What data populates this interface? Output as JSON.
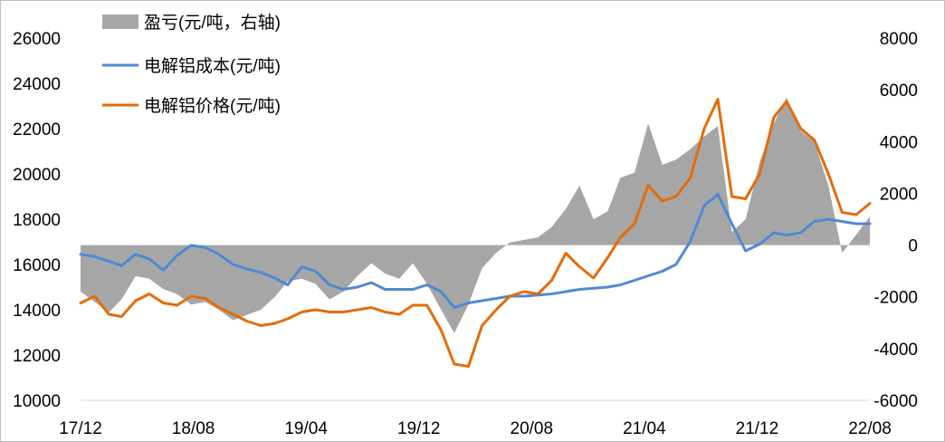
{
  "chart_data": {
    "type": "line",
    "title": "",
    "x_ticks": [
      "17/12",
      "18/08",
      "19/04",
      "19/12",
      "20/08",
      "21/04",
      "21/12",
      "22/08"
    ],
    "x_range": [
      "2017-12",
      "2022-08"
    ],
    "y_left": {
      "label": "",
      "ticks": [
        "10000",
        "12000",
        "14000",
        "16000",
        "18000",
        "20000",
        "22000",
        "24000",
        "26000"
      ],
      "range": [
        10000,
        26000
      ]
    },
    "y_right": {
      "label": "",
      "ticks": [
        "-6000",
        "-4000",
        "-2000",
        "0",
        "2000",
        "4000",
        "6000",
        "8000"
      ],
      "range": [
        -6000,
        8000
      ]
    },
    "legend_position": "top-left",
    "grid": false,
    "x_months_from_start_note": "x values are dates as YYYY-MM-DD",
    "series": [
      {
        "name": "盈亏(元/吨，右轴)",
        "kind": "area",
        "axis": "right",
        "color": "#a6a6a6",
        "points": [
          [
            "2017-12-01",
            -1800
          ],
          [
            "2018-01-01",
            -2200
          ],
          [
            "2018-02-01",
            -2600
          ],
          [
            "2018-03-01",
            -2100
          ],
          [
            "2018-04-01",
            -1200
          ],
          [
            "2018-05-01",
            -1300
          ],
          [
            "2018-06-01",
            -1700
          ],
          [
            "2018-07-01",
            -1900
          ],
          [
            "2018-08-01",
            -2300
          ],
          [
            "2018-09-01",
            -2200
          ],
          [
            "2018-10-01",
            -2500
          ],
          [
            "2018-11-01",
            -2900
          ],
          [
            "2018-12-01",
            -2700
          ],
          [
            "2019-01-01",
            -2500
          ],
          [
            "2019-02-01",
            -2000
          ],
          [
            "2019-03-01",
            -1400
          ],
          [
            "2019-04-01",
            -1300
          ],
          [
            "2019-05-01",
            -1500
          ],
          [
            "2019-06-01",
            -2100
          ],
          [
            "2019-07-01",
            -1800
          ],
          [
            "2019-08-01",
            -1200
          ],
          [
            "2019-09-01",
            -700
          ],
          [
            "2019-10-01",
            -1100
          ],
          [
            "2019-11-01",
            -1300
          ],
          [
            "2019-12-01",
            -700
          ],
          [
            "2020-01-01",
            -1500
          ],
          [
            "2020-02-01",
            -2500
          ],
          [
            "2020-03-01",
            -3400
          ],
          [
            "2020-04-01",
            -2300
          ],
          [
            "2020-05-01",
            -900
          ],
          [
            "2020-06-01",
            -300
          ],
          [
            "2020-07-01",
            100
          ],
          [
            "2020-08-01",
            200
          ],
          [
            "2020-09-01",
            300
          ],
          [
            "2020-10-01",
            700
          ],
          [
            "2020-11-01",
            1400
          ],
          [
            "2020-12-01",
            2300
          ],
          [
            "2021-01-01",
            1000
          ],
          [
            "2021-02-01",
            1300
          ],
          [
            "2021-03-01",
            2600
          ],
          [
            "2021-04-01",
            2800
          ],
          [
            "2021-05-01",
            4700
          ],
          [
            "2021-06-01",
            3100
          ],
          [
            "2021-07-01",
            3300
          ],
          [
            "2021-08-01",
            3700
          ],
          [
            "2021-09-01",
            4200
          ],
          [
            "2021-10-01",
            4600
          ],
          [
            "2021-11-01",
            500
          ],
          [
            "2021-12-01",
            1000
          ],
          [
            "2022-01-01",
            3200
          ],
          [
            "2022-02-01",
            4700
          ],
          [
            "2022-03-01",
            5700
          ],
          [
            "2022-04-01",
            4400
          ],
          [
            "2022-05-01",
            4000
          ],
          [
            "2022-06-01",
            2300
          ],
          [
            "2022-07-01",
            -300
          ],
          [
            "2022-08-01",
            400
          ],
          [
            "2022-08-31",
            1100
          ]
        ]
      },
      {
        "name": "电解铝成本(元/吨)",
        "kind": "line",
        "axis": "left",
        "color": "#4f89d3",
        "points": [
          [
            "2017-12-01",
            16450
          ],
          [
            "2018-01-01",
            16350
          ],
          [
            "2018-02-01",
            16150
          ],
          [
            "2018-03-01",
            15950
          ],
          [
            "2018-04-01",
            16450
          ],
          [
            "2018-05-01",
            16250
          ],
          [
            "2018-06-01",
            15750
          ],
          [
            "2018-07-01",
            16400
          ],
          [
            "2018-08-01",
            16850
          ],
          [
            "2018-09-01",
            16750
          ],
          [
            "2018-10-01",
            16450
          ],
          [
            "2018-11-01",
            16000
          ],
          [
            "2018-12-01",
            15800
          ],
          [
            "2019-01-01",
            15650
          ],
          [
            "2019-02-01",
            15400
          ],
          [
            "2019-03-01",
            15100
          ],
          [
            "2019-04-01",
            15900
          ],
          [
            "2019-05-01",
            15700
          ],
          [
            "2019-06-01",
            15100
          ],
          [
            "2019-07-01",
            14900
          ],
          [
            "2019-08-01",
            15000
          ],
          [
            "2019-09-01",
            15200
          ],
          [
            "2019-10-01",
            14900
          ],
          [
            "2019-11-01",
            14900
          ],
          [
            "2019-12-01",
            14900
          ],
          [
            "2020-01-01",
            15100
          ],
          [
            "2020-02-01",
            14800
          ],
          [
            "2020-03-01",
            14100
          ],
          [
            "2020-04-01",
            14300
          ],
          [
            "2020-05-01",
            14400
          ],
          [
            "2020-06-01",
            14500
          ],
          [
            "2020-07-01",
            14600
          ],
          [
            "2020-08-01",
            14600
          ],
          [
            "2020-09-01",
            14650
          ],
          [
            "2020-10-01",
            14700
          ],
          [
            "2020-11-01",
            14800
          ],
          [
            "2020-12-01",
            14900
          ],
          [
            "2021-01-01",
            14950
          ],
          [
            "2021-02-01",
            15000
          ],
          [
            "2021-03-01",
            15100
          ],
          [
            "2021-04-01",
            15300
          ],
          [
            "2021-05-01",
            15500
          ],
          [
            "2021-06-01",
            15700
          ],
          [
            "2021-07-01",
            16000
          ],
          [
            "2021-08-01",
            17000
          ],
          [
            "2021-09-01",
            18600
          ],
          [
            "2021-10-01",
            19100
          ],
          [
            "2021-11-01",
            17800
          ],
          [
            "2021-12-01",
            16600
          ],
          [
            "2022-01-01",
            16900
          ],
          [
            "2022-02-01",
            17400
          ],
          [
            "2022-03-01",
            17300
          ],
          [
            "2022-04-01",
            17400
          ],
          [
            "2022-05-01",
            17900
          ],
          [
            "2022-06-01",
            18000
          ],
          [
            "2022-07-01",
            17900
          ],
          [
            "2022-08-01",
            17800
          ],
          [
            "2022-08-31",
            17800
          ]
        ]
      },
      {
        "name": "电解铝价格(元/吨)",
        "kind": "line",
        "axis": "left",
        "color": "#e46c0a",
        "points": [
          [
            "2017-12-01",
            14300
          ],
          [
            "2018-01-01",
            14600
          ],
          [
            "2018-02-01",
            13800
          ],
          [
            "2018-03-01",
            13700
          ],
          [
            "2018-04-01",
            14400
          ],
          [
            "2018-05-01",
            14700
          ],
          [
            "2018-06-01",
            14300
          ],
          [
            "2018-07-01",
            14200
          ],
          [
            "2018-08-01",
            14600
          ],
          [
            "2018-09-01",
            14500
          ],
          [
            "2018-10-01",
            14100
          ],
          [
            "2018-11-01",
            13800
          ],
          [
            "2018-12-01",
            13500
          ],
          [
            "2019-01-01",
            13300
          ],
          [
            "2019-02-01",
            13400
          ],
          [
            "2019-03-01",
            13600
          ],
          [
            "2019-04-01",
            13900
          ],
          [
            "2019-05-01",
            14000
          ],
          [
            "2019-06-01",
            13900
          ],
          [
            "2019-07-01",
            13900
          ],
          [
            "2019-08-01",
            14000
          ],
          [
            "2019-09-01",
            14100
          ],
          [
            "2019-10-01",
            13900
          ],
          [
            "2019-11-01",
            13800
          ],
          [
            "2019-12-01",
            14200
          ],
          [
            "2020-01-01",
            14200
          ],
          [
            "2020-02-01",
            13100
          ],
          [
            "2020-03-01",
            11600
          ],
          [
            "2020-04-01",
            11500
          ],
          [
            "2020-05-01",
            13300
          ],
          [
            "2020-06-01",
            14000
          ],
          [
            "2020-07-01",
            14600
          ],
          [
            "2020-08-01",
            14800
          ],
          [
            "2020-09-01",
            14700
          ],
          [
            "2020-10-01",
            15300
          ],
          [
            "2020-11-01",
            16500
          ],
          [
            "2020-12-01",
            15900
          ],
          [
            "2021-01-01",
            15400
          ],
          [
            "2021-02-01",
            16300
          ],
          [
            "2021-03-01",
            17200
          ],
          [
            "2021-04-01",
            17800
          ],
          [
            "2021-05-01",
            19500
          ],
          [
            "2021-06-01",
            18800
          ],
          [
            "2021-07-01",
            19000
          ],
          [
            "2021-08-01",
            19800
          ],
          [
            "2021-09-01",
            22000
          ],
          [
            "2021-10-01",
            23300
          ],
          [
            "2021-11-01",
            19000
          ],
          [
            "2021-12-01",
            18900
          ],
          [
            "2022-01-01",
            20000
          ],
          [
            "2022-02-01",
            22500
          ],
          [
            "2022-03-01",
            23200
          ],
          [
            "2022-04-01",
            22000
          ],
          [
            "2022-05-01",
            21500
          ],
          [
            "2022-06-01",
            20000
          ],
          [
            "2022-07-01",
            18300
          ],
          [
            "2022-08-01",
            18200
          ],
          [
            "2022-08-31",
            18700
          ]
        ]
      }
    ]
  }
}
